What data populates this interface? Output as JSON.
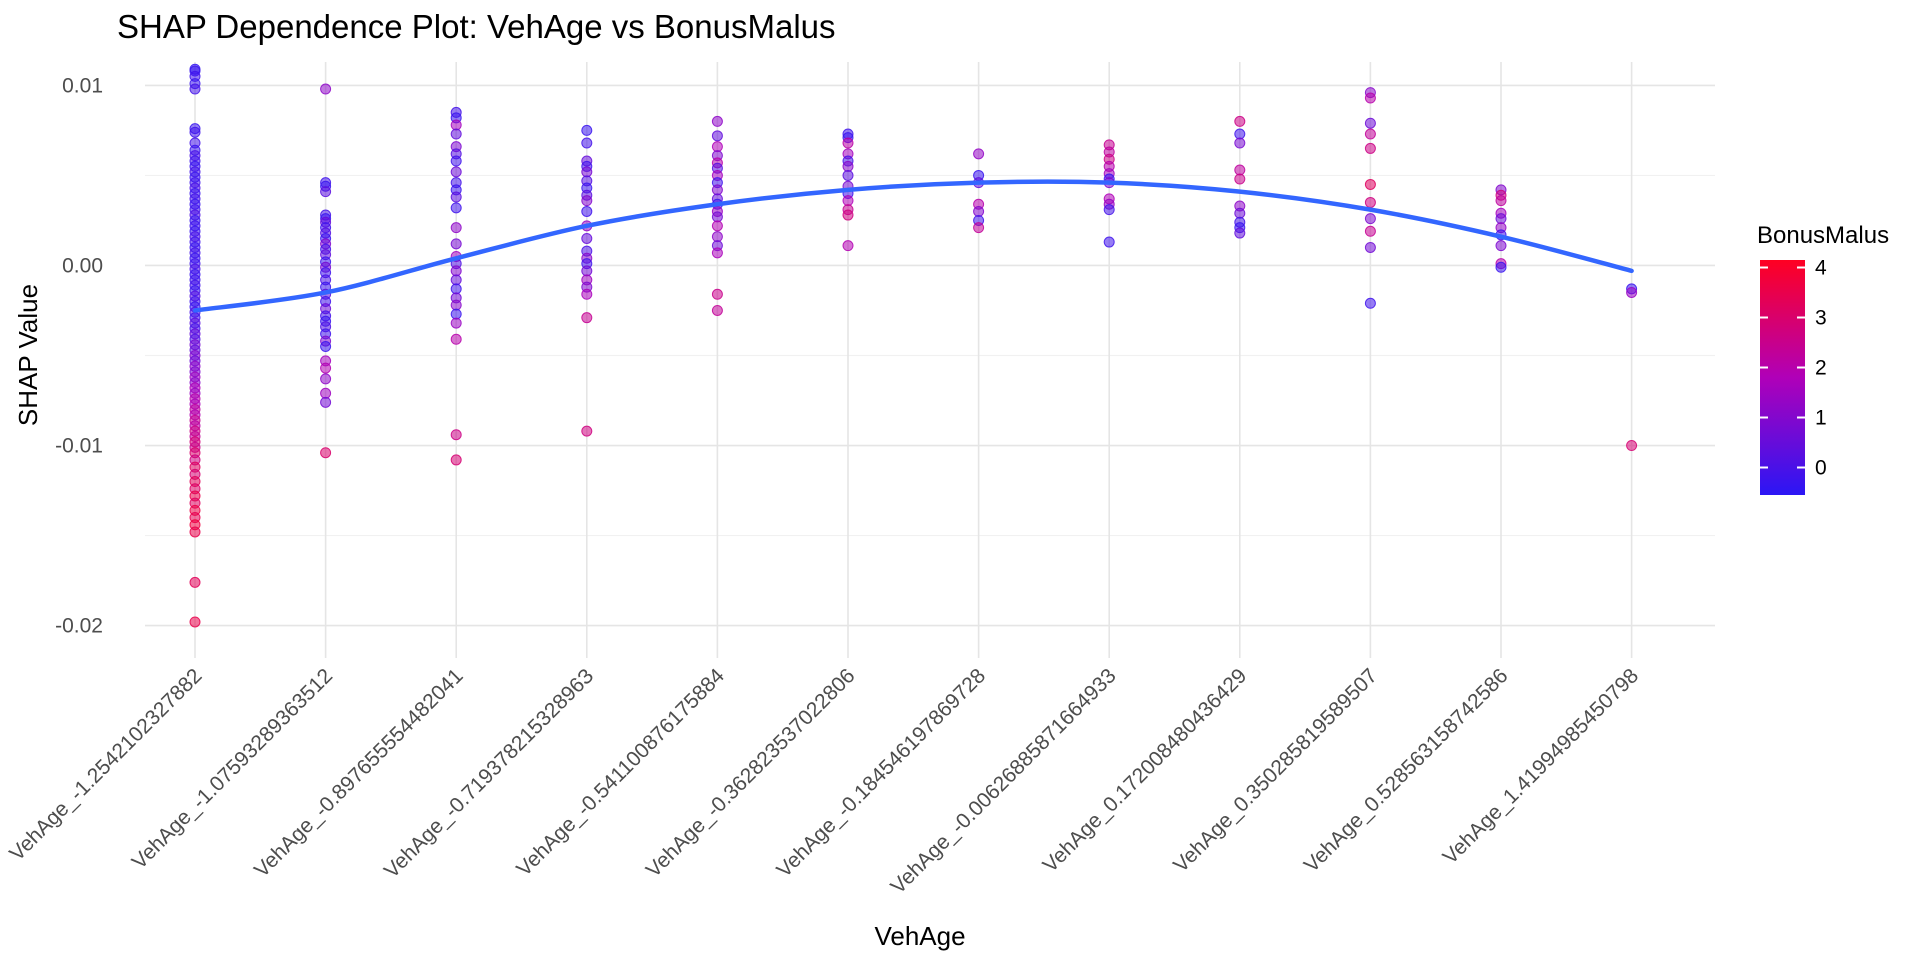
{
  "chart_data": {
    "type": "scatter",
    "title": "SHAP Dependence Plot: VehAge vs BonusMalus",
    "xlabel": "VehAge",
    "ylabel": "SHAP Value",
    "grid": true,
    "legend_position": "right",
    "categories": [
      "VehAge_-1.2542102327882",
      "VehAge_-1.07593289363512",
      "VehAge_-0.897655554482041",
      "VehAge_-0.71937821532896З",
      "VehAge_-0.541100876175884",
      "VehAge_-0.362823537022806",
      "VehAge_-0.184546197869728",
      "VehAge_-0.00626885871664933",
      "VehAge_0.172008480436429",
      "VehAge_0.350285819589507",
      "VehAge_0.528563158742586",
      "VehAge_1.41994985450798"
    ],
    "ylim": [
      -0.0218,
      0.0113
    ],
    "yticks": [
      0.01,
      0.0,
      -0.01,
      -0.02
    ],
    "ytick_labels": [
      "0.01",
      "0.00",
      "-0.01",
      "-0.02"
    ],
    "color_scale": {
      "title": "BonusMalus",
      "min": -0.55,
      "max": 4.15,
      "ticks": [
        4,
        3,
        2,
        1,
        0
      ],
      "tick_labels": [
        "4",
        "3",
        "2",
        "1",
        "0"
      ],
      "low_color": "#2b16f5",
      "mid_color": "#b000b8",
      "high_color": "#ff0022"
    },
    "trend_line": {
      "color": "#3366ff",
      "y": [
        -0.0025,
        -0.0015,
        0.0004,
        0.0022,
        0.0034,
        0.0042,
        0.0046,
        0.0046,
        0.0041,
        0.0031,
        0.0016,
        -0.0003
      ]
    },
    "points": [
      [
        0,
        0.0109,
        -0.4
      ],
      [
        0,
        0.0108,
        -0.3
      ],
      [
        0,
        0.0105,
        -0.2
      ],
      [
        0,
        0.0101,
        -0.3
      ],
      [
        0,
        0.0098,
        -0.1
      ],
      [
        0,
        0.0076,
        -0.3
      ],
      [
        0,
        0.0074,
        -0.2
      ],
      [
        0,
        0.0068,
        -0.1
      ],
      [
        0,
        0.0064,
        -0.3
      ],
      [
        0,
        0.0061,
        0.0
      ],
      [
        0,
        0.0058,
        -0.2
      ],
      [
        0,
        0.0055,
        -0.3
      ],
      [
        0,
        0.0052,
        -0.1
      ],
      [
        0,
        0.0049,
        -0.3
      ],
      [
        0,
        0.0046,
        -0.2
      ],
      [
        0,
        0.0043,
        0.0
      ],
      [
        0,
        0.004,
        -0.3
      ],
      [
        0,
        0.0037,
        -0.1
      ],
      [
        0,
        0.0034,
        -0.3
      ],
      [
        0,
        0.0031,
        -0.2
      ],
      [
        0,
        0.0028,
        0.1
      ],
      [
        0,
        0.0025,
        -0.3
      ],
      [
        0,
        0.0022,
        -0.2
      ],
      [
        0,
        0.0019,
        -0.3
      ],
      [
        0,
        0.0016,
        0.0
      ],
      [
        0,
        0.0013,
        -0.2
      ],
      [
        0,
        0.001,
        -0.3
      ],
      [
        0,
        0.0007,
        -0.1
      ],
      [
        0,
        0.0004,
        -0.3
      ],
      [
        0,
        0.0001,
        -0.2
      ],
      [
        0,
        -0.0002,
        0.0
      ],
      [
        0,
        -0.0005,
        -0.3
      ],
      [
        0,
        -0.0008,
        -0.2
      ],
      [
        0,
        -0.0011,
        -0.1
      ],
      [
        0,
        -0.0014,
        -0.3
      ],
      [
        0,
        -0.0017,
        0.2
      ],
      [
        0,
        -0.002,
        -0.2
      ],
      [
        0,
        -0.0023,
        -0.3
      ],
      [
        0,
        -0.0026,
        0.0
      ],
      [
        0,
        -0.0029,
        -0.2
      ],
      [
        0,
        -0.0032,
        0.3
      ],
      [
        0,
        -0.0035,
        -0.1
      ],
      [
        0,
        -0.0038,
        0.5
      ],
      [
        0,
        -0.0041,
        0.1
      ],
      [
        0,
        -0.0044,
        0.8
      ],
      [
        0,
        -0.0047,
        0.4
      ],
      [
        0,
        -0.005,
        1.0
      ],
      [
        0,
        -0.0053,
        0.6
      ],
      [
        0,
        -0.0056,
        1.2
      ],
      [
        0,
        -0.0059,
        0.9
      ],
      [
        0,
        -0.0062,
        1.5
      ],
      [
        0,
        -0.0065,
        1.1
      ],
      [
        0,
        -0.0068,
        1.8
      ],
      [
        0,
        -0.0071,
        1.4
      ],
      [
        0,
        -0.0074,
        2.0
      ],
      [
        0,
        -0.0077,
        1.7
      ],
      [
        0,
        -0.008,
        2.2
      ],
      [
        0,
        -0.0083,
        1.9
      ],
      [
        0,
        -0.0086,
        2.4
      ],
      [
        0,
        -0.0089,
        2.1
      ],
      [
        0,
        -0.0092,
        2.6
      ],
      [
        0,
        -0.0095,
        2.3
      ],
      [
        0,
        -0.0098,
        2.8
      ],
      [
        0,
        -0.0101,
        2.5
      ],
      [
        0,
        -0.0104,
        3.0
      ],
      [
        0,
        -0.0108,
        2.7
      ],
      [
        0,
        -0.0112,
        3.2
      ],
      [
        0,
        -0.0116,
        2.9
      ],
      [
        0,
        -0.012,
        3.3
      ],
      [
        0,
        -0.0124,
        3.1
      ],
      [
        0,
        -0.0128,
        3.5
      ],
      [
        0,
        -0.0132,
        3.2
      ],
      [
        0,
        -0.0136,
        3.6
      ],
      [
        0,
        -0.014,
        3.4
      ],
      [
        0,
        -0.0144,
        3.7
      ],
      [
        0,
        -0.0148,
        3.5
      ],
      [
        0,
        -0.0176,
        3.3
      ],
      [
        0,
        -0.0198,
        3.5
      ],
      [
        1,
        0.0098,
        1.2
      ],
      [
        1,
        0.0046,
        -0.2
      ],
      [
        1,
        0.0044,
        -0.3
      ],
      [
        1,
        0.0041,
        0.3
      ],
      [
        1,
        0.0028,
        -0.1
      ],
      [
        1,
        0.0026,
        -0.3
      ],
      [
        1,
        0.0024,
        0.5
      ],
      [
        1,
        0.0021,
        -0.2
      ],
      [
        1,
        0.0018,
        0.2
      ],
      [
        1,
        0.0015,
        -0.3
      ],
      [
        1,
        0.0012,
        1.0
      ],
      [
        1,
        0.0009,
        -0.1
      ],
      [
        1,
        0.0006,
        0.4
      ],
      [
        1,
        0.0002,
        -0.3
      ],
      [
        1,
        -0.0001,
        0.8
      ],
      [
        1,
        -0.0004,
        -0.2
      ],
      [
        1,
        -0.0008,
        0.0
      ],
      [
        1,
        -0.0012,
        -0.3
      ],
      [
        1,
        -0.0016,
        0.3
      ],
      [
        1,
        -0.002,
        -0.2
      ],
      [
        1,
        -0.0024,
        0.6
      ],
      [
        1,
        -0.0028,
        -0.1
      ],
      [
        1,
        -0.0031,
        -0.3
      ],
      [
        1,
        -0.0034,
        0.1
      ],
      [
        1,
        -0.0038,
        -0.2
      ],
      [
        1,
        -0.0042,
        0.9
      ],
      [
        1,
        -0.0045,
        -0.3
      ],
      [
        1,
        -0.0053,
        1.6
      ],
      [
        1,
        -0.0057,
        1.9
      ],
      [
        1,
        -0.0063,
        1.2
      ],
      [
        1,
        -0.0071,
        1.5
      ],
      [
        1,
        -0.0076,
        0.7
      ],
      [
        1,
        -0.0104,
        3.0
      ],
      [
        2,
        0.0085,
        -0.1
      ],
      [
        2,
        0.0082,
        -0.3
      ],
      [
        2,
        0.0078,
        1.6
      ],
      [
        2,
        0.0073,
        0.4
      ],
      [
        2,
        0.0066,
        0.9
      ],
      [
        2,
        0.0062,
        0.2
      ],
      [
        2,
        0.0058,
        -0.2
      ],
      [
        2,
        0.0052,
        0.6
      ],
      [
        2,
        0.0046,
        -0.1
      ],
      [
        2,
        0.0042,
        -0.3
      ],
      [
        2,
        0.0038,
        0.3
      ],
      [
        2,
        0.0032,
        -0.2
      ],
      [
        2,
        0.0021,
        1.2
      ],
      [
        2,
        0.0012,
        0.8
      ],
      [
        2,
        0.0005,
        1.5
      ],
      [
        2,
        0.0001,
        0.1
      ],
      [
        2,
        -0.0003,
        1.0
      ],
      [
        2,
        -0.0008,
        0.5
      ],
      [
        2,
        -0.0013,
        -0.2
      ],
      [
        2,
        -0.0018,
        0.7
      ],
      [
        2,
        -0.0022,
        1.1
      ],
      [
        2,
        -0.0027,
        -0.3
      ],
      [
        2,
        -0.0032,
        1.4
      ],
      [
        2,
        -0.0041,
        2.0
      ],
      [
        2,
        -0.0094,
        2.6
      ],
      [
        2,
        -0.0108,
        2.9
      ],
      [
        3,
        0.0075,
        -0.3
      ],
      [
        3,
        0.0068,
        -0.1
      ],
      [
        3,
        0.0058,
        0.5
      ],
      [
        3,
        0.0055,
        -0.2
      ],
      [
        3,
        0.0052,
        0.8
      ],
      [
        3,
        0.0047,
        0.2
      ],
      [
        3,
        0.0043,
        -0.3
      ],
      [
        3,
        0.0039,
        0.3
      ],
      [
        3,
        0.0036,
        1.0
      ],
      [
        3,
        0.003,
        -0.2
      ],
      [
        3,
        0.0022,
        1.3
      ],
      [
        3,
        0.0015,
        0.5
      ],
      [
        3,
        0.0008,
        0.0
      ],
      [
        3,
        0.0004,
        1.1
      ],
      [
        3,
        0.0001,
        -0.2
      ],
      [
        3,
        -0.0003,
        0.7
      ],
      [
        3,
        -0.0008,
        1.5
      ],
      [
        3,
        -0.0012,
        0.9
      ],
      [
        3,
        -0.0016,
        1.7
      ],
      [
        3,
        -0.0029,
        2.4
      ],
      [
        3,
        -0.0092,
        2.7
      ],
      [
        4,
        0.008,
        1.2
      ],
      [
        4,
        0.0072,
        0.4
      ],
      [
        4,
        0.0066,
        1.8
      ],
      [
        4,
        0.0061,
        0.9
      ],
      [
        4,
        0.0057,
        2.0
      ],
      [
        4,
        0.0054,
        0.2
      ],
      [
        4,
        0.005,
        1.6
      ],
      [
        4,
        0.0046,
        -0.2
      ],
      [
        4,
        0.0042,
        1.0
      ],
      [
        4,
        0.0037,
        0.5
      ],
      [
        4,
        0.0034,
        -0.3
      ],
      [
        4,
        0.003,
        1.4
      ],
      [
        4,
        0.0027,
        0.7
      ],
      [
        4,
        0.0022,
        1.9
      ],
      [
        4,
        0.0016,
        1.2
      ],
      [
        4,
        0.0011,
        0.6
      ],
      [
        4,
        0.0007,
        1.7
      ],
      [
        4,
        -0.0016,
        2.5
      ],
      [
        4,
        -0.0025,
        2.3
      ],
      [
        5,
        0.0073,
        -0.2
      ],
      [
        5,
        0.0071,
        -0.3
      ],
      [
        5,
        0.0068,
        2.1
      ],
      [
        5,
        0.0062,
        1.6
      ],
      [
        5,
        0.0058,
        -0.1
      ],
      [
        5,
        0.0055,
        1.1
      ],
      [
        5,
        0.005,
        0.3
      ],
      [
        5,
        0.0044,
        0.8
      ],
      [
        5,
        0.004,
        -0.2
      ],
      [
        5,
        0.0036,
        1.8
      ],
      [
        5,
        0.0031,
        2.4
      ],
      [
        5,
        0.0028,
        2.7
      ],
      [
        5,
        0.0011,
        1.9
      ],
      [
        6,
        0.0062,
        1.3
      ],
      [
        6,
        0.005,
        -0.3
      ],
      [
        6,
        0.0046,
        0.4
      ],
      [
        6,
        0.0034,
        2.0
      ],
      [
        6,
        0.003,
        1.0
      ],
      [
        6,
        0.0025,
        -0.2
      ],
      [
        6,
        0.0021,
        2.3
      ],
      [
        7,
        0.0067,
        2.4
      ],
      [
        7,
        0.0063,
        2.2
      ],
      [
        7,
        0.0059,
        2.6
      ],
      [
        7,
        0.0055,
        2.0
      ],
      [
        7,
        0.0051,
        1.6
      ],
      [
        7,
        0.0048,
        -0.3
      ],
      [
        7,
        0.0046,
        0.9
      ],
      [
        7,
        0.0037,
        1.8
      ],
      [
        7,
        0.0034,
        1.4
      ],
      [
        7,
        0.0031,
        -0.1
      ],
      [
        7,
        0.0013,
        -0.2
      ],
      [
        8,
        0.008,
        2.6
      ],
      [
        8,
        0.0073,
        -0.2
      ],
      [
        8,
        0.0068,
        0.8
      ],
      [
        8,
        0.0053,
        2.2
      ],
      [
        8,
        0.0048,
        2.5
      ],
      [
        8,
        0.0033,
        1.2
      ],
      [
        8,
        0.0029,
        0.6
      ],
      [
        8,
        0.0024,
        -0.1
      ],
      [
        8,
        0.0021,
        -0.3
      ],
      [
        8,
        0.0018,
        0.4
      ],
      [
        9,
        0.0096,
        1.1
      ],
      [
        9,
        0.0093,
        2.0
      ],
      [
        9,
        0.0079,
        0.6
      ],
      [
        9,
        0.0073,
        2.3
      ],
      [
        9,
        0.0065,
        2.6
      ],
      [
        9,
        0.0045,
        3.2
      ],
      [
        9,
        0.0035,
        2.7
      ],
      [
        9,
        0.0026,
        0.9
      ],
      [
        9,
        0.0019,
        2.4
      ],
      [
        9,
        0.001,
        0.7
      ],
      [
        9,
        -0.0021,
        -0.2
      ],
      [
        10,
        0.0042,
        1.0
      ],
      [
        10,
        0.0039,
        2.7
      ],
      [
        10,
        0.0036,
        2.2
      ],
      [
        10,
        0.0029,
        1.6
      ],
      [
        10,
        0.0026,
        0.6
      ],
      [
        10,
        0.0021,
        1.3
      ],
      [
        10,
        0.0017,
        -0.2
      ],
      [
        10,
        0.0011,
        0.9
      ],
      [
        10,
        0.0001,
        2.0
      ],
      [
        10,
        -0.0001,
        -0.3
      ],
      [
        11,
        -0.0013,
        -0.3
      ],
      [
        11,
        -0.0015,
        1.4
      ],
      [
        11,
        -0.01,
        2.9
      ]
    ]
  }
}
